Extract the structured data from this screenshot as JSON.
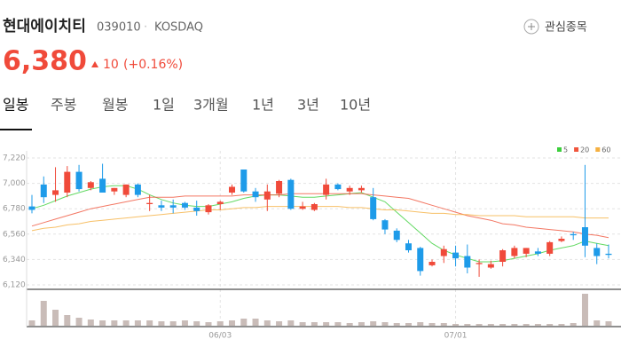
{
  "header": {
    "name": "현대에이치티",
    "code": "039010",
    "market": "KOSDAQ",
    "watch_button": "관심종목"
  },
  "price": {
    "current": "6,380",
    "change": 10,
    "change_pct": "(+0.16%)"
  },
  "tabs": [
    "일봉",
    "주봉",
    "월봉",
    "1일",
    "3개월",
    "1년",
    "3년",
    "10년"
  ],
  "chart_data": {
    "type": "candlestick",
    "categories": [
      null,
      null,
      null,
      null,
      null,
      null,
      null,
      null,
      null,
      null,
      null,
      null,
      null,
      null,
      null,
      null,
      "06/03",
      null,
      null,
      null,
      null,
      null,
      null,
      null,
      null,
      null,
      null,
      null,
      null,
      null,
      null,
      null,
      null,
      null,
      null,
      null,
      "07/01",
      null,
      null,
      null,
      null,
      null,
      null,
      null,
      null,
      null,
      null,
      null,
      null,
      null
    ],
    "open": [
      6800,
      6990,
      6900,
      6920,
      7100,
      6960,
      7040,
      6930,
      6900,
      6990,
      6820,
      6810,
      6810,
      6830,
      6790,
      6750,
      6820,
      6920,
      7120,
      6930,
      6860,
      6910,
      7030,
      6780,
      6770,
      6900,
      6990,
      6930,
      6940,
      6880,
      6680,
      6590,
      6480,
      6440,
      6290,
      6370,
      6400,
      6370,
      6300,
      6270,
      6320,
      6370,
      6390,
      6410,
      6390,
      6500,
      6560,
      6620,
      6440,
      6390
    ],
    "high": [
      6900,
      7060,
      7140,
      7150,
      7160,
      7020,
      7170,
      6960,
      6990,
      7000,
      6900,
      6850,
      6860,
      6840,
      6850,
      6820,
      6850,
      6990,
      7120,
      6960,
      6990,
      7030,
      7040,
      6840,
      6830,
      7040,
      7000,
      6980,
      6980,
      6960,
      6690,
      6610,
      6510,
      6450,
      6340,
      6460,
      6460,
      6470,
      6340,
      6330,
      6430,
      6460,
      6440,
      6440,
      6500,
      6540,
      6580,
      7160,
      6480,
      6470
    ],
    "low": [
      6740,
      6830,
      6840,
      6880,
      6930,
      6940,
      6920,
      6900,
      6880,
      6880,
      6760,
      6760,
      6740,
      6770,
      6720,
      6730,
      6770,
      6900,
      6920,
      6840,
      6760,
      6880,
      6770,
      6770,
      6760,
      6860,
      6940,
      6900,
      6920,
      6680,
      6560,
      6490,
      6400,
      6200,
      6280,
      6310,
      6280,
      6220,
      6190,
      6260,
      6280,
      6350,
      6360,
      6370,
      6370,
      6490,
      6510,
      6360,
      6300,
      6350
    ],
    "close": [
      6770,
      6880,
      6940,
      7100,
      6950,
      7010,
      6920,
      6960,
      6990,
      6900,
      6830,
      6790,
      6790,
      6790,
      6760,
      6810,
      6840,
      6970,
      6930,
      6880,
      6930,
      7020,
      6780,
      6800,
      6820,
      6990,
      6950,
      6960,
      6960,
      6690,
      6600,
      6510,
      6420,
      6240,
      6320,
      6430,
      6350,
      6270,
      6310,
      6300,
      6420,
      6440,
      6440,
      6390,
      6490,
      6520,
      6550,
      6460,
      6370,
      6380
    ],
    "volume": [
      6,
      28,
      18,
      12,
      9,
      7,
      6,
      6,
      6,
      6,
      6,
      5,
      5,
      6,
      5,
      4,
      5,
      6,
      8,
      8,
      6,
      5,
      6,
      4,
      4,
      4,
      4,
      3,
      4,
      5,
      4,
      3,
      3,
      4,
      3,
      3,
      2,
      2,
      2,
      2,
      2,
      2,
      2,
      2,
      2,
      2,
      3,
      36,
      6,
      5
    ],
    "up_color": "#f04a3a",
    "down_color": "#1e9be9",
    "volume_color": "#c9bcb8",
    "series": [
      {
        "name": "5",
        "color": "#3ccf3c",
        "values": [
          6780,
          6810,
          6850,
          6890,
          6920,
          6950,
          6970,
          6980,
          6980,
          6950,
          6900,
          6860,
          6830,
          6810,
          6800,
          6800,
          6820,
          6840,
          6870,
          6890,
          6900,
          6900,
          6890,
          6880,
          6880,
          6890,
          6900,
          6910,
          6920,
          6880,
          6840,
          6750,
          6660,
          6570,
          6480,
          6420,
          6380,
          6350,
          6320,
          6320,
          6330,
          6350,
          6370,
          6390,
          6420,
          6440,
          6460,
          6500,
          6480,
          6460
        ]
      },
      {
        "name": "20",
        "color": "#f0553c",
        "values": [
          6630,
          6660,
          6690,
          6720,
          6750,
          6780,
          6800,
          6820,
          6840,
          6860,
          6880,
          6880,
          6880,
          6890,
          6890,
          6890,
          6890,
          6890,
          6900,
          6900,
          6900,
          6900,
          6910,
          6910,
          6910,
          6910,
          6910,
          6910,
          6910,
          6900,
          6890,
          6880,
          6870,
          6840,
          6810,
          6780,
          6750,
          6720,
          6700,
          6680,
          6650,
          6640,
          6620,
          6610,
          6600,
          6590,
          6580,
          6560,
          6550,
          6530
        ]
      },
      {
        "name": "60",
        "color": "#f5b041",
        "values": [
          6590,
          6610,
          6620,
          6640,
          6650,
          6670,
          6680,
          6690,
          6700,
          6710,
          6720,
          6730,
          6740,
          6750,
          6760,
          6770,
          6770,
          6780,
          6790,
          6790,
          6800,
          6800,
          6800,
          6800,
          6800,
          6800,
          6800,
          6790,
          6790,
          6780,
          6770,
          6770,
          6760,
          6750,
          6740,
          6740,
          6730,
          6730,
          6720,
          6720,
          6720,
          6720,
          6710,
          6710,
          6710,
          6710,
          6710,
          6700,
          6700,
          6700
        ]
      }
    ],
    "ylim": [
      6120,
      7220
    ],
    "yticks": [
      {
        "value": 6120,
        "label": "6,120"
      },
      {
        "value": 6340,
        "label": "6,340"
      },
      {
        "value": 6560,
        "label": "6,560"
      },
      {
        "value": 6780,
        "label": "6,780"
      },
      {
        "value": 7000,
        "label": "7,000"
      },
      {
        "value": 7220,
        "label": "7,220"
      }
    ],
    "grid": true
  }
}
